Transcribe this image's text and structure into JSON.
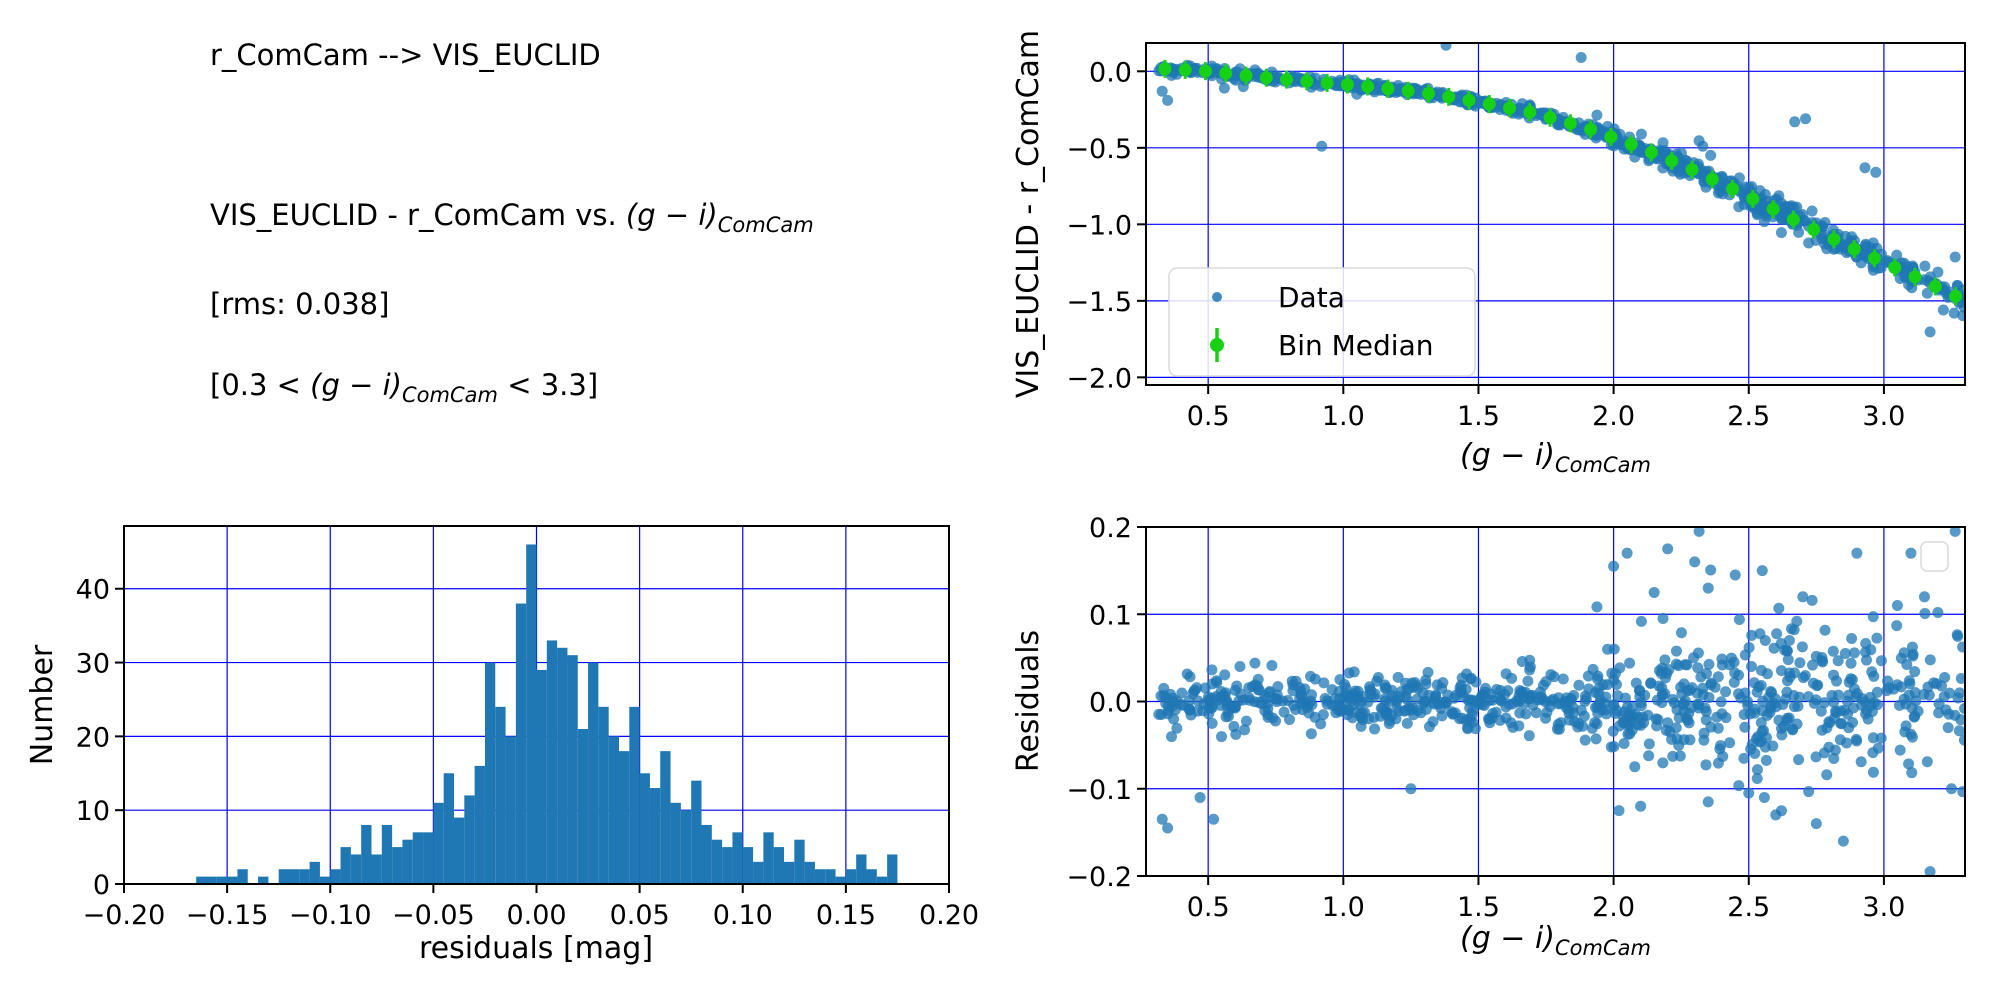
{
  "annotations": {
    "line1": "r_ComCam --> VIS_EUCLID",
    "line2": {
      "prefix": "VIS_EUCLID - r_ComCam vs. ",
      "math": "(g − i)",
      "sub": "ComCam",
      "suffix": ""
    },
    "line3": "[rms: 0.038]",
    "line4": {
      "prefix": "[0.3 < ",
      "math": "(g − i)",
      "sub": "ComCam",
      "suffix": " < 3.3]"
    }
  },
  "colors": {
    "data_point": "#1f77b4",
    "bin_median": "#17d117",
    "grid": "#0000ff",
    "hist_bar": "#1f77b4",
    "spine": "#000000",
    "legend_border": "#d9d9d9"
  },
  "chart_data": [
    {
      "type": "scatter",
      "ylabel": "VIS_EUCLID - r_ComCam",
      "xlabel_math": {
        "math": "(g − i)",
        "sub": "ComCam"
      },
      "xlim": [
        0.27,
        3.3
      ],
      "ylim": [
        -2.05,
        0.185
      ],
      "xticks": {
        "values": [
          0.5,
          1.0,
          1.5,
          2.0,
          2.5,
          3.0
        ],
        "labels": [
          "0.5",
          "1.0",
          "1.5",
          "2.0",
          "2.5",
          "3.0"
        ]
      },
      "yticks": {
        "values": [
          0.0,
          -0.5,
          -1.0,
          -1.5,
          -2.0
        ],
        "labels": [
          "0.0",
          "−0.5",
          "−1.0",
          "−1.5",
          "−2.0"
        ]
      },
      "legend": [
        "Data",
        "Bin Median"
      ],
      "grid": true,
      "n_points": 850,
      "x_segments": [
        [
          0.3,
          1.0,
          0.2
        ],
        [
          1.0,
          1.9,
          0.3
        ],
        [
          1.9,
          2.85,
          0.38
        ],
        [
          2.85,
          3.3,
          0.12
        ]
      ],
      "noise": {
        "sigma_base": 0.016,
        "sigma_slope": 0.022,
        "slope_start": 1.5,
        "tail_frac": 0.08,
        "tail_mult": 2.2
      },
      "curve_anchors": [
        [
          0.3,
          0.02
        ],
        [
          0.5,
          0.0
        ],
        [
          0.7,
          -0.04
        ],
        [
          0.9,
          -0.07
        ],
        [
          1.1,
          -0.1
        ],
        [
          1.3,
          -0.14
        ],
        [
          1.5,
          -0.2
        ],
        [
          1.7,
          -0.27
        ],
        [
          1.9,
          -0.37
        ],
        [
          2.1,
          -0.5
        ],
        [
          2.3,
          -0.65
        ],
        [
          2.5,
          -0.82
        ],
        [
          2.7,
          -1.0
        ],
        [
          2.9,
          -1.17
        ],
        [
          3.1,
          -1.33
        ],
        [
          3.3,
          -1.5
        ]
      ],
      "bin_medians": [
        [
          0.34,
          0.016
        ],
        [
          0.415,
          0.009
        ],
        [
          0.49,
          0.001
        ],
        [
          0.565,
          -0.013
        ],
        [
          0.64,
          -0.028
        ],
        [
          0.715,
          -0.042
        ],
        [
          0.79,
          -0.054
        ],
        [
          0.865,
          -0.065
        ],
        [
          0.94,
          -0.076
        ],
        [
          1.015,
          -0.087
        ],
        [
          1.09,
          -0.099
        ],
        [
          1.165,
          -0.113
        ],
        [
          1.24,
          -0.128
        ],
        [
          1.315,
          -0.145
        ],
        [
          1.39,
          -0.167
        ],
        [
          1.465,
          -0.19
        ],
        [
          1.54,
          -0.214
        ],
        [
          1.615,
          -0.24
        ],
        [
          1.69,
          -0.267
        ],
        [
          1.765,
          -0.303
        ],
        [
          1.84,
          -0.34
        ],
        [
          1.915,
          -0.38
        ],
        [
          1.99,
          -0.429
        ],
        [
          2.065,
          -0.477
        ],
        [
          2.14,
          -0.53
        ],
        [
          2.215,
          -0.586
        ],
        [
          2.29,
          -0.643
        ],
        [
          2.365,
          -0.705
        ],
        [
          2.44,
          -0.769
        ],
        [
          2.515,
          -0.834
        ],
        [
          2.59,
          -0.901
        ],
        [
          2.665,
          -0.969
        ],
        [
          2.74,
          -1.034
        ],
        [
          2.815,
          -1.098
        ],
        [
          2.89,
          -1.162
        ],
        [
          2.965,
          -1.222
        ],
        [
          3.04,
          -1.282
        ],
        [
          3.115,
          -1.343
        ],
        [
          3.19,
          -1.406
        ],
        [
          3.265,
          -1.47
        ]
      ],
      "outliers": [
        [
          0.33,
          -0.13
        ],
        [
          0.35,
          -0.19
        ],
        [
          0.56,
          -0.11
        ],
        [
          0.63,
          -0.1
        ],
        [
          0.92,
          -0.49
        ],
        [
          1.05,
          -0.15
        ],
        [
          1.38,
          0.17
        ],
        [
          1.88,
          0.09
        ],
        [
          2.33,
          -0.49
        ],
        [
          2.67,
          -0.33
        ],
        [
          2.71,
          -0.31
        ],
        [
          2.93,
          -0.63
        ],
        [
          2.97,
          -0.66
        ],
        [
          3.22,
          -1.56
        ],
        [
          3.26,
          -1.58
        ]
      ]
    },
    {
      "type": "histogram",
      "xlabel": "residuals [mag]",
      "ylabel": "Number",
      "xlim": [
        -0.2,
        0.2
      ],
      "ylim": [
        0,
        48.5
      ],
      "grid": true,
      "bin_start": -0.2,
      "bin_width": 0.005,
      "counts": [
        0,
        0,
        0,
        0,
        0,
        0,
        0,
        1,
        1,
        1,
        1,
        2,
        0,
        1,
        0,
        2,
        2,
        2,
        3,
        1,
        2,
        5,
        4,
        8,
        4,
        8,
        5,
        6,
        7,
        7,
        11,
        15,
        9,
        12,
        16,
        30,
        24,
        20,
        38,
        46,
        29,
        33,
        32,
        31,
        21,
        30,
        24,
        20,
        18,
        24,
        15,
        13,
        18,
        11,
        10,
        14,
        8,
        6,
        5,
        7,
        5,
        3,
        7,
        5,
        3,
        6,
        3,
        2,
        2,
        1,
        2,
        4,
        2,
        1,
        4,
        0,
        0,
        0,
        0,
        0
      ],
      "xticks": {
        "values": [
          -0.2,
          -0.15,
          -0.1,
          -0.05,
          0.0,
          0.05,
          0.1,
          0.15,
          0.2
        ],
        "labels": [
          "−0.20",
          "−0.15",
          "−0.10",
          "−0.05",
          "0.00",
          "0.05",
          "0.10",
          "0.15",
          "0.20"
        ]
      },
      "yticks": {
        "values": [
          0,
          10,
          20,
          30,
          40
        ],
        "labels": [
          "0",
          "10",
          "20",
          "30",
          "40"
        ]
      }
    },
    {
      "type": "scatter",
      "ylabel": "Residuals",
      "xlabel_math": {
        "math": "(g − i)",
        "sub": "ComCam"
      },
      "xlim": [
        0.27,
        3.3
      ],
      "ylim": [
        -0.2,
        0.2
      ],
      "grid": true,
      "empty_legend": true,
      "xticks": {
        "values": [
          0.5,
          1.0,
          1.5,
          2.0,
          2.5,
          3.0
        ],
        "labels": [
          "0.5",
          "1.0",
          "1.5",
          "2.0",
          "2.5",
          "3.0"
        ]
      },
      "yticks": {
        "values": [
          0.2,
          0.1,
          0.0,
          -0.1,
          -0.2
        ],
        "labels": [
          "0.2",
          "0.1",
          "0.0",
          "−0.1",
          "−0.2"
        ]
      },
      "outliers": [
        [
          0.33,
          -0.135
        ],
        [
          0.35,
          -0.145
        ],
        [
          0.47,
          -0.11
        ],
        [
          0.52,
          -0.135
        ],
        [
          1.25,
          -0.1
        ],
        [
          2.02,
          -0.125
        ],
        [
          2.1,
          -0.12
        ],
        [
          2.35,
          -0.115
        ],
        [
          2.5,
          -0.105
        ],
        [
          2.6,
          -0.13
        ],
        [
          2.75,
          -0.14
        ],
        [
          2.85,
          -0.16
        ],
        [
          3.25,
          -0.1
        ],
        [
          2.0,
          0.155
        ],
        [
          2.05,
          0.17
        ],
        [
          2.15,
          0.125
        ],
        [
          2.2,
          0.175
        ],
        [
          2.3,
          0.16
        ],
        [
          2.35,
          0.13
        ],
        [
          2.45,
          0.145
        ],
        [
          2.55,
          0.15
        ],
        [
          2.7,
          0.12
        ],
        [
          2.9,
          0.17
        ],
        [
          3.05,
          0.11
        ],
        [
          3.1,
          0.17
        ],
        [
          3.15,
          0.12
        ]
      ]
    }
  ]
}
